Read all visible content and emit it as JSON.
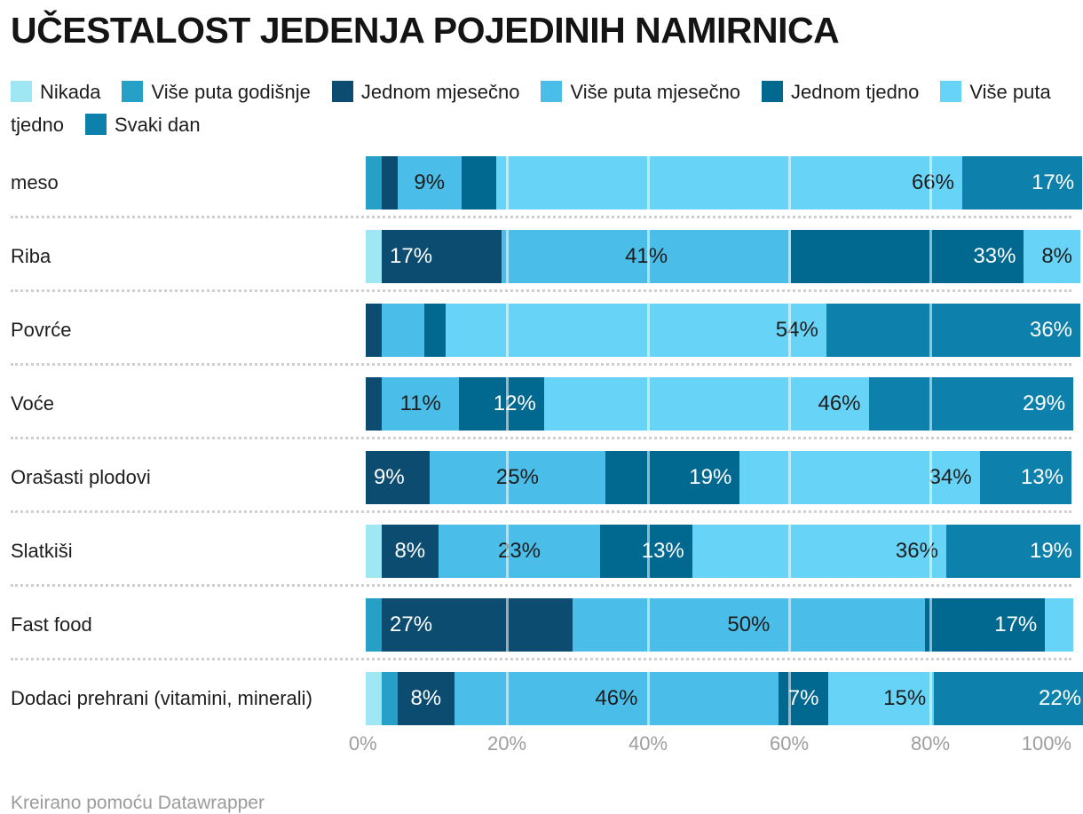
{
  "title": "UČESTALOST JEDENJA POJEDINIH NAMIRNICA",
  "footer": "Kreirano pomoću Datawrapper",
  "chart_data": {
    "type": "bar",
    "variant": "stacked-horizontal",
    "title": "UČESTALOST JEDENJA POJEDINIH NAMIRNICA",
    "xlabel": "",
    "ylabel": "",
    "xlim": [
      0,
      100
    ],
    "x_ticks": [
      {
        "label": "0%",
        "pct": 0
      },
      {
        "label": "20%",
        "pct": 20
      },
      {
        "label": "40%",
        "pct": 40
      },
      {
        "label": "60%",
        "pct": 60
      },
      {
        "label": "80%",
        "pct": 80
      },
      {
        "label": "100%",
        "pct": 100
      }
    ],
    "gridlines_pct": [
      20,
      40,
      60,
      80
    ],
    "legend_position": "top",
    "series": [
      {
        "name": "Nikada",
        "color": "#9fe8f3",
        "text": "#1d1d1d"
      },
      {
        "name": "Više puta godišnje",
        "color": "#27a0c8",
        "text": "#1d1d1d"
      },
      {
        "name": "Jednom mjesečno",
        "color": "#0b4c70",
        "text": "#ffffff"
      },
      {
        "name": "Više puta mjesečno",
        "color": "#4abde8",
        "text": "#1d1d1d"
      },
      {
        "name": "Jednom tjedno",
        "color": "#016990",
        "text": "#ffffff"
      },
      {
        "name": "Više puta tjedno",
        "color": "#67d4f7",
        "text": "#1d1d1d"
      },
      {
        "name": "Svaki dan",
        "color": "#0d81ab",
        "text": "#ffffff"
      }
    ],
    "categories": [
      "meso",
      "Riba",
      "Povrće",
      "Voće",
      "Orašasti plodovi",
      "Slatkiši",
      "Fast food",
      "Dodaci prehrani (vitamini, minerali)"
    ],
    "rows": [
      {
        "category": "meso",
        "segments": [
          {
            "s": "Više puta godišnje",
            "value": 2
          },
          {
            "s": "Jednom mjesečno",
            "value": 1
          },
          {
            "s": "Više puta mjesečno",
            "value": 9,
            "label": "9%",
            "align": "center"
          },
          {
            "s": "Jednom tjedno",
            "value": 5
          },
          {
            "s": "Više puta tjedno",
            "value": 66,
            "label": "66%",
            "align": "right"
          },
          {
            "s": "Svaki dan",
            "value": 17,
            "label": "17%",
            "align": "right"
          }
        ]
      },
      {
        "category": "Riba",
        "segments": [
          {
            "s": "Nikada",
            "value": 1
          },
          {
            "s": "Jednom mjesečno",
            "value": 17,
            "label": "17%",
            "align": "left"
          },
          {
            "s": "Više puta mjesečno",
            "value": 41,
            "label": "41%",
            "align": "center"
          },
          {
            "s": "Jednom tjedno",
            "value": 33,
            "label": "33%",
            "align": "right"
          },
          {
            "s": "Više puta tjedno",
            "value": 8,
            "label": "8%",
            "align": "right"
          }
        ]
      },
      {
        "category": "Povrće",
        "segments": [
          {
            "s": "Jednom mjesečno",
            "value": 1
          },
          {
            "s": "Više puta mjesečno",
            "value": 6
          },
          {
            "s": "Jednom tjedno",
            "value": 3
          },
          {
            "s": "Više puta tjedno",
            "value": 54,
            "label": "54%",
            "align": "right"
          },
          {
            "s": "Svaki dan",
            "value": 36,
            "label": "36%",
            "align": "right"
          }
        ]
      },
      {
        "category": "Voće",
        "segments": [
          {
            "s": "Jednom mjesečno",
            "value": 2
          },
          {
            "s": "Više puta mjesečno",
            "value": 11,
            "label": "11%",
            "align": "center"
          },
          {
            "s": "Jednom tjedno",
            "value": 12,
            "label": "12%",
            "align": "right"
          },
          {
            "s": "Više puta tjedno",
            "value": 46,
            "label": "46%",
            "align": "right"
          },
          {
            "s": "Svaki dan",
            "value": 29,
            "label": "29%",
            "align": "right"
          }
        ]
      },
      {
        "category": "Orašasti plodovi",
        "segments": [
          {
            "s": "Jednom mjesečno",
            "value": 9,
            "label": "9%",
            "align": "left"
          },
          {
            "s": "Više puta mjesečno",
            "value": 25,
            "label": "25%",
            "align": "center"
          },
          {
            "s": "Jednom tjedno",
            "value": 19,
            "label": "19%",
            "align": "right"
          },
          {
            "s": "Više puta tjedno",
            "value": 34,
            "label": "34%",
            "align": "right"
          },
          {
            "s": "Svaki dan",
            "value": 13,
            "label": "13%",
            "align": "right"
          }
        ]
      },
      {
        "category": "Slatkiši",
        "segments": [
          {
            "s": "Nikada",
            "value": 1
          },
          {
            "s": "Jednom mjesečno",
            "value": 8,
            "label": "8%",
            "align": "center"
          },
          {
            "s": "Više puta mjesečno",
            "value": 23,
            "label": "23%",
            "align": "center"
          },
          {
            "s": "Jednom tjedno",
            "value": 13,
            "label": "13%",
            "align": "right"
          },
          {
            "s": "Više puta tjedno",
            "value": 36,
            "label": "36%",
            "align": "right"
          },
          {
            "s": "Svaki dan",
            "value": 19,
            "label": "19%",
            "align": "right"
          }
        ]
      },
      {
        "category": "Fast food",
        "segments": [
          {
            "s": "Više puta godišnje",
            "value": 2
          },
          {
            "s": "Jednom mjesečno",
            "value": 27,
            "label": "27%",
            "align": "left"
          },
          {
            "s": "Više puta mjesečno",
            "value": 50,
            "label": "50%",
            "align": "center"
          },
          {
            "s": "Jednom tjedno",
            "value": 17,
            "label": "17%",
            "align": "right"
          },
          {
            "s": "Više puta tjedno",
            "value": 4
          }
        ]
      },
      {
        "category": "Dodaci prehrani (vitamini, minerali)",
        "segments": [
          {
            "s": "Nikada",
            "value": 1
          },
          {
            "s": "Više puta godišnje",
            "value": 1
          },
          {
            "s": "Jednom mjesečno",
            "value": 8,
            "label": "8%",
            "align": "center"
          },
          {
            "s": "Više puta mjesečno",
            "value": 46,
            "label": "46%",
            "align": "center"
          },
          {
            "s": "Jednom tjedno",
            "value": 7,
            "label": "7%",
            "align": "center"
          },
          {
            "s": "Više puta tjedno",
            "value": 15,
            "label": "15%",
            "align": "right"
          },
          {
            "s": "Svaki dan",
            "value": 22,
            "label": "22%",
            "align": "right"
          }
        ]
      }
    ]
  }
}
